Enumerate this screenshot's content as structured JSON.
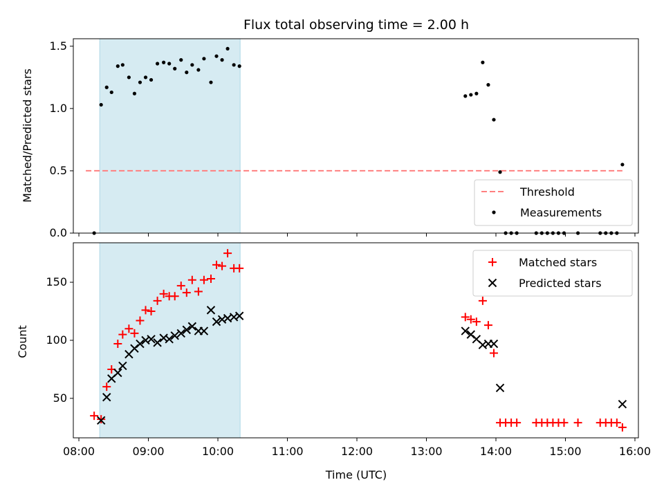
{
  "chart_data": [
    {
      "type": "scatter",
      "title": "Flux total observing time = 2.00 h",
      "ylabel": "Matched/Predicted stars",
      "xlabel": "",
      "ylim": [
        0,
        1.56
      ],
      "yticks": [
        0,
        0.5,
        1.0,
        1.5
      ],
      "ytick_labels": [
        "0.0",
        "0.5",
        "1.0",
        "1.5"
      ],
      "shaded_region": {
        "x_start": 8.3,
        "x_end": 10.32,
        "color": "#add8e6"
      },
      "legend_position": "lower-right",
      "series": [
        {
          "name": "Threshold",
          "style": "dashed-line",
          "color": "#ff7f7f",
          "x": [
            8.1,
            15.82
          ],
          "y": [
            0.5,
            0.5
          ]
        },
        {
          "name": "Measurements",
          "style": "dot",
          "color": "#000000",
          "x": [
            8.22,
            8.32,
            8.4,
            8.47,
            8.56,
            8.63,
            8.72,
            8.8,
            8.88,
            8.96,
            9.04,
            9.13,
            9.22,
            9.3,
            9.38,
            9.47,
            9.55,
            9.63,
            9.72,
            9.8,
            9.9,
            9.98,
            10.06,
            10.14,
            10.23,
            10.31,
            13.56,
            13.64,
            13.72,
            13.81,
            13.89,
            13.97,
            14.06,
            14.14,
            14.22,
            14.3,
            14.58,
            14.66,
            14.74,
            14.82,
            14.9,
            14.98,
            15.18,
            15.5,
            15.58,
            15.66,
            15.74,
            15.82
          ],
          "y": [
            0.0,
            1.03,
            1.17,
            1.13,
            1.34,
            1.35,
            1.25,
            1.12,
            1.21,
            1.25,
            1.23,
            1.36,
            1.37,
            1.36,
            1.32,
            1.39,
            1.29,
            1.35,
            1.31,
            1.4,
            1.21,
            1.42,
            1.39,
            1.48,
            1.35,
            1.34,
            1.1,
            1.11,
            1.12,
            1.37,
            1.19,
            0.91,
            0.49,
            0.0,
            0.0,
            0.0,
            0.0,
            0.0,
            0.0,
            0.0,
            0.0,
            0.0,
            0.0,
            0.0,
            0.0,
            0.0,
            0.0,
            0.55
          ]
        }
      ]
    },
    {
      "type": "scatter",
      "title": "",
      "ylabel": "Count",
      "xlabel": "Time (UTC)",
      "ylim": [
        16,
        184
      ],
      "yticks": [
        50,
        100,
        150
      ],
      "ytick_labels": [
        "50",
        "100",
        "150"
      ],
      "xlim": [
        7.92,
        16.05
      ],
      "xticks": [
        8,
        9,
        10,
        11,
        12,
        13,
        14,
        15,
        16
      ],
      "xtick_labels": [
        "08:00",
        "09:00",
        "10:00",
        "11:00",
        "12:00",
        "13:00",
        "14:00",
        "15:00",
        "16:00"
      ],
      "shaded_region": {
        "x_start": 8.3,
        "x_end": 10.32,
        "color": "#add8e6"
      },
      "legend_position": "upper-right",
      "series": [
        {
          "name": "Matched stars",
          "style": "plus",
          "color": "#ff0000",
          "x": [
            8.22,
            8.32,
            8.4,
            8.47,
            8.56,
            8.63,
            8.72,
            8.8,
            8.88,
            8.96,
            9.04,
            9.13,
            9.22,
            9.3,
            9.38,
            9.47,
            9.55,
            9.63,
            9.72,
            9.8,
            9.9,
            9.98,
            10.06,
            10.14,
            10.23,
            10.31,
            13.56,
            13.64,
            13.72,
            13.81,
            13.89,
            13.97,
            14.06,
            14.14,
            14.22,
            14.3,
            14.58,
            14.66,
            14.74,
            14.82,
            14.9,
            14.98,
            15.18,
            15.5,
            15.58,
            15.66,
            15.74,
            15.82
          ],
          "y": [
            35,
            32,
            60,
            75,
            97,
            105,
            110,
            106,
            117,
            126,
            125,
            134,
            140,
            138,
            138,
            147,
            141,
            152,
            142,
            152,
            153,
            165,
            164,
            175,
            162,
            162,
            120,
            118,
            116,
            134,
            113,
            89,
            29,
            29,
            29,
            29,
            29,
            29,
            29,
            29,
            29,
            29,
            29,
            29,
            29,
            29,
            29,
            25
          ]
        },
        {
          "name": "Predicted stars",
          "style": "cross",
          "color": "#000000",
          "x": [
            8.32,
            8.4,
            8.47,
            8.56,
            8.63,
            8.72,
            8.8,
            8.88,
            8.96,
            9.04,
            9.13,
            9.22,
            9.3,
            9.38,
            9.47,
            9.55,
            9.63,
            9.72,
            9.8,
            9.9,
            9.98,
            10.06,
            10.14,
            10.23,
            10.31,
            13.56,
            13.64,
            13.72,
            13.81,
            13.89,
            13.97,
            14.06,
            15.82
          ],
          "y": [
            31,
            51,
            67,
            72,
            78,
            88,
            93,
            97,
            100,
            101,
            98,
            102,
            101,
            104,
            106,
            109,
            112,
            108,
            108,
            126,
            116,
            118,
            119,
            120,
            121,
            108,
            105,
            101,
            96,
            97,
            97,
            59,
            45
          ]
        }
      ]
    }
  ]
}
